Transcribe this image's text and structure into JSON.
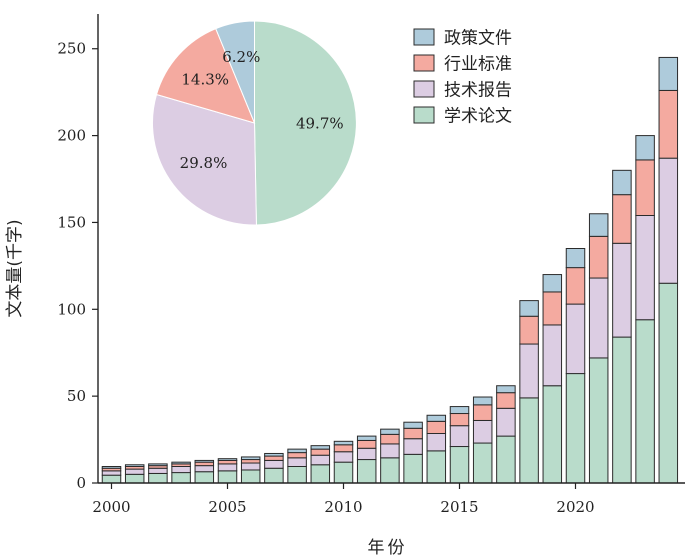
{
  "chart_data": {
    "type": "bar",
    "stacked": true,
    "title": "",
    "xlabel": "年份",
    "ylabel": "文本量(千字)",
    "ylim": [
      0,
      270
    ],
    "yticks": [
      0,
      50,
      100,
      150,
      200,
      250
    ],
    "xticks": [
      2000,
      2005,
      2010,
      2015,
      2020
    ],
    "grid": false,
    "legend_position": "top-right",
    "categories": [
      2000,
      2001,
      2002,
      2003,
      2004,
      2005,
      2006,
      2007,
      2008,
      2009,
      2010,
      2011,
      2012,
      2013,
      2014,
      2015,
      2016,
      2017,
      2018,
      2019,
      2020,
      2021,
      2022,
      2023,
      2024
    ],
    "series": [
      {
        "name": "学术论文",
        "color": "#b9dccb",
        "values": [
          4.5,
          5,
          5.5,
          6,
          6.5,
          7,
          7.5,
          8.5,
          9.5,
          10.5,
          12,
          13.5,
          14.5,
          16.5,
          18.5,
          21,
          23,
          27,
          49,
          56,
          63,
          72,
          84,
          94,
          115
        ]
      },
      {
        "name": "技术报告",
        "color": "#dccde3",
        "values": [
          2.5,
          3,
          3,
          3.5,
          3.5,
          4,
          4,
          4.5,
          5,
          5.5,
          6,
          6.5,
          8,
          9,
          10,
          12,
          13,
          16,
          31,
          35,
          40,
          46,
          54,
          60,
          72
        ]
      },
      {
        "name": "行业标准",
        "color": "#f4aaa0",
        "values": [
          1.5,
          1.5,
          1.5,
          1.5,
          2,
          2,
          2,
          2.5,
          3,
          3.5,
          4,
          4.5,
          5.5,
          6,
          7,
          7,
          9,
          9,
          16,
          19,
          21,
          24,
          28,
          32,
          39
        ]
      },
      {
        "name": "政策文件",
        "color": "#aecbdb",
        "values": [
          1,
          1,
          1,
          1,
          1,
          1,
          1.5,
          1.5,
          2,
          2,
          2,
          2.5,
          3,
          3.5,
          3.5,
          4,
          4.5,
          4,
          9,
          10,
          11,
          13,
          14,
          14,
          19
        ]
      }
    ],
    "legend": [
      "政策文件",
      "行业标准",
      "技术报告",
      "学术论文"
    ],
    "inset_pie": {
      "type": "pie",
      "slices": [
        {
          "name": "学术论文",
          "value": 49.7,
          "label": "49.7%",
          "color": "#b9dccb"
        },
        {
          "name": "技术报告",
          "value": 29.8,
          "label": "29.8%",
          "color": "#dccde3"
        },
        {
          "name": "行业标准",
          "value": 14.3,
          "label": "14.3%",
          "color": "#f4aaa0"
        },
        {
          "name": "政策文件",
          "value": 6.2,
          "label": "6.2%",
          "color": "#aecbdb"
        }
      ]
    }
  }
}
